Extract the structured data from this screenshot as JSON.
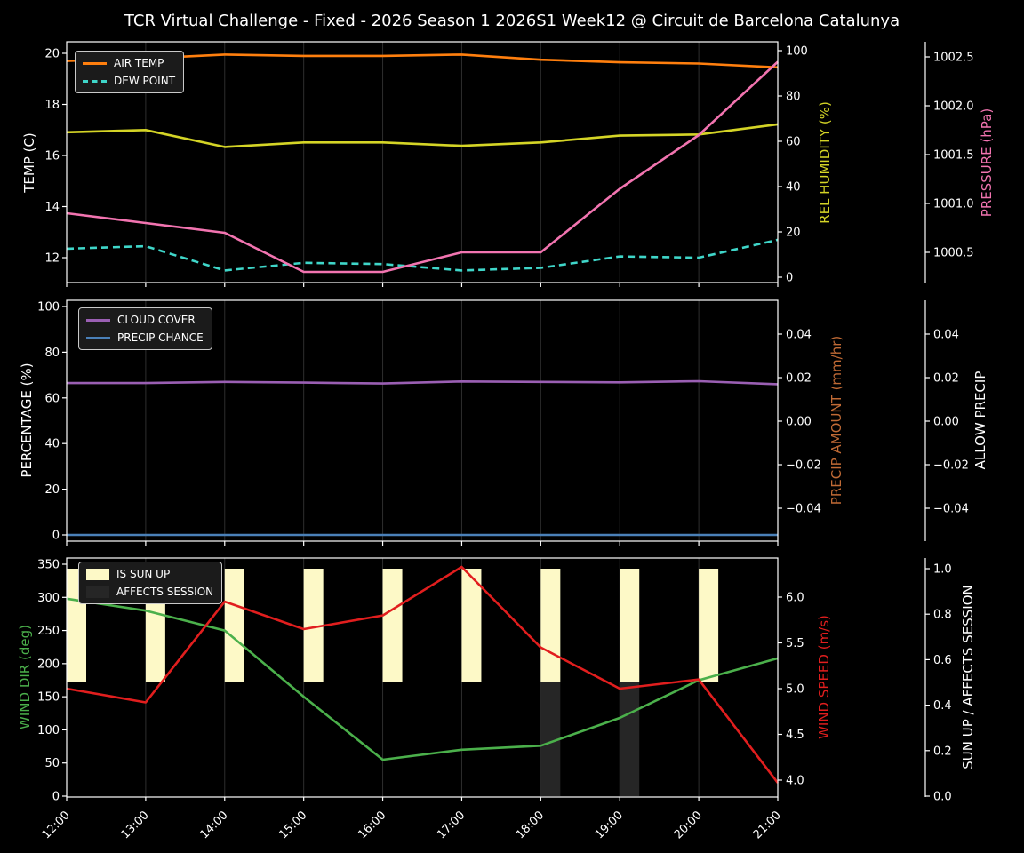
{
  "title": "TCR Virtual Challenge - Fixed - 2026 Season 1 2026S1 Week12 @ Circuit de Barcelona Catalunya",
  "figure": {
    "background_color": "#000000",
    "foreground_color": "#ffffff",
    "grid_color": "#2e2e2e",
    "legend_background": "#1b1b1b",
    "legend_border": "#c9c9c9"
  },
  "x_axis": {
    "labels": [
      "12:00",
      "13:00",
      "14:00",
      "15:00",
      "16:00",
      "17:00",
      "18:00",
      "19:00",
      "20:00",
      "21:00"
    ]
  },
  "chart_data": [
    {
      "panel": "temperature-humidity-pressure",
      "type": "line",
      "x": [
        "12:00",
        "13:00",
        "14:00",
        "15:00",
        "16:00",
        "17:00",
        "18:00",
        "19:00",
        "20:00",
        "21:00"
      ],
      "axes": {
        "left": {
          "label": "TEMP (C)",
          "color": "#ffffff",
          "ticks": [
            [
              12,
              "12"
            ],
            [
              14,
              "14"
            ],
            [
              16,
              "16"
            ],
            [
              18,
              "18"
            ],
            [
              20,
              "20"
            ]
          ]
        },
        "right1": {
          "label": "REL HUMIDITY (%)",
          "color": "#d4d426",
          "ticks": [
            [
              0,
              "0"
            ],
            [
              20,
              "20"
            ],
            [
              40,
              "40"
            ],
            [
              60,
              "60"
            ],
            [
              80,
              "80"
            ],
            [
              100,
              "100"
            ]
          ]
        },
        "right2": {
          "label": "PRESSURE (hPa)",
          "color": "#f274b0",
          "ticks": [
            [
              1000.5,
              "1000.5"
            ],
            [
              1001,
              "1001.0"
            ],
            [
              1001.5,
              "1001.5"
            ],
            [
              1002,
              "1002.0"
            ],
            [
              1002.5,
              "1002.5"
            ]
          ]
        }
      },
      "series": [
        {
          "name": "AIR TEMP",
          "axis": "left",
          "color": "#ff7f0e",
          "dash": false,
          "values": [
            19.7,
            19.8,
            19.95,
            19.9,
            19.9,
            19.95,
            19.75,
            19.65,
            19.6,
            19.45
          ]
        },
        {
          "name": "DEW POINT",
          "axis": "left",
          "color": "#3fd6c9",
          "dash": true,
          "values": [
            12.35,
            12.45,
            11.5,
            11.8,
            11.75,
            11.5,
            11.6,
            12.05,
            12.0,
            12.7
          ]
        },
        {
          "name": "REL HUMIDITY",
          "axis": "right1",
          "color": "#d4d426",
          "dash": false,
          "values": [
            64,
            65,
            57.5,
            59.5,
            59.5,
            58,
            59.5,
            62.5,
            63,
            67.5
          ]
        },
        {
          "name": "PRESSURE",
          "axis": "right2",
          "color": "#f274b0",
          "dash": false,
          "values": [
            1000.9,
            1000.8,
            1000.7,
            1000.3,
            1000.3,
            1000.5,
            1000.5,
            1001.15,
            1001.7,
            1002.45
          ]
        }
      ],
      "legend": [
        "AIR TEMP",
        "DEW POINT"
      ]
    },
    {
      "panel": "cloud-precipitation",
      "type": "line",
      "x": [
        "12:00",
        "13:00",
        "14:00",
        "15:00",
        "16:00",
        "17:00",
        "18:00",
        "19:00",
        "20:00",
        "21:00"
      ],
      "axes": {
        "left": {
          "label": "PERCENTAGE (%)",
          "color": "#ffffff",
          "ticks": [
            [
              0,
              "0"
            ],
            [
              20,
              "20"
            ],
            [
              40,
              "40"
            ],
            [
              60,
              "60"
            ],
            [
              80,
              "80"
            ],
            [
              100,
              "100"
            ]
          ]
        },
        "right1": {
          "label": "PRECIP AMOUNT (mm/hr)",
          "color": "#c06a35",
          "ticks": [
            [
              0.04,
              "0.04"
            ],
            [
              0.02,
              "0.02"
            ],
            [
              0,
              "0.00"
            ],
            [
              -0.02,
              "−0.02"
            ],
            [
              -0.04,
              "−0.04"
            ]
          ]
        },
        "right2": {
          "label": "ALLOW PRECIP",
          "color": "#ffffff",
          "ticks": [
            [
              0.04,
              "0.04"
            ],
            [
              0.02,
              "0.02"
            ],
            [
              0,
              "0.00"
            ],
            [
              -0.02,
              "−0.02"
            ],
            [
              -0.04,
              "−0.04"
            ]
          ]
        }
      },
      "series": [
        {
          "name": "CLOUD COVER",
          "axis": "left",
          "color": "#9a5fb3",
          "dash": false,
          "values": [
            66.5,
            66.5,
            67,
            66.7,
            66.3,
            67.2,
            67,
            66.8,
            67.3,
            66
          ]
        },
        {
          "name": "PRECIP CHANCE",
          "axis": "left",
          "color": "#4a80b8",
          "dash": false,
          "values": [
            0,
            0,
            0,
            0,
            0,
            0,
            0,
            0,
            0,
            0
          ]
        }
      ],
      "legend": [
        "CLOUD COVER",
        "PRECIP CHANCE"
      ]
    },
    {
      "panel": "wind-sun",
      "type": "line+bar",
      "x": [
        "12:00",
        "13:00",
        "14:00",
        "15:00",
        "16:00",
        "17:00",
        "18:00",
        "19:00",
        "20:00",
        "21:00"
      ],
      "axes": {
        "left": {
          "label": "WIND DIR (deg)",
          "color": "#4bb04b",
          "ticks": [
            [
              0,
              "0"
            ],
            [
              50,
              "50"
            ],
            [
              100,
              "100"
            ],
            [
              150,
              "150"
            ],
            [
              200,
              "200"
            ],
            [
              250,
              "250"
            ],
            [
              300,
              "300"
            ],
            [
              350,
              "350"
            ]
          ]
        },
        "right1": {
          "label": "WIND SPEED (m/s)",
          "color": "#e11e1e",
          "ticks": [
            [
              4,
              "4.0"
            ],
            [
              4.5,
              "4.5"
            ],
            [
              5,
              "5.0"
            ],
            [
              5.5,
              "5.5"
            ],
            [
              6,
              "6.0"
            ]
          ]
        },
        "right2": {
          "label": "SUN UP / AFFECTS SESSION",
          "color": "#ffffff",
          "ticks": [
            [
              0,
              "0.0"
            ],
            [
              0.2,
              "0.2"
            ],
            [
              0.4,
              "0.4"
            ],
            [
              0.6,
              "0.6"
            ],
            [
              0.8,
              "0.8"
            ],
            [
              1,
              "1.0"
            ]
          ]
        }
      },
      "bars": [
        {
          "name": "IS SUN UP",
          "axis": "right2",
          "color": "#fdf9c7",
          "from": 0.5,
          "to": 1.0,
          "flags": [
            1,
            1,
            1,
            1,
            1,
            1,
            1,
            1,
            1,
            0
          ]
        },
        {
          "name": "AFFECTS SESSION",
          "axis": "right2",
          "color": "#262626",
          "from": 0.0,
          "to": 0.5,
          "flags": [
            0,
            0,
            0,
            0,
            0,
            0,
            1,
            1,
            0,
            0
          ]
        }
      ],
      "series": [
        {
          "name": "WIND DIR",
          "axis": "left",
          "color": "#4bb04b",
          "dash": false,
          "values": [
            298,
            280,
            250,
            150,
            55,
            70,
            76,
            118,
            175,
            208
          ]
        },
        {
          "name": "WIND SPEED",
          "axis": "right1",
          "color": "#e11e1e",
          "dash": false,
          "values": [
            5.0,
            4.85,
            5.95,
            5.65,
            5.8,
            6.33,
            5.45,
            5.0,
            5.1,
            3.97
          ]
        }
      ],
      "legend": [
        "IS SUN UP",
        "AFFECTS SESSION"
      ]
    }
  ]
}
